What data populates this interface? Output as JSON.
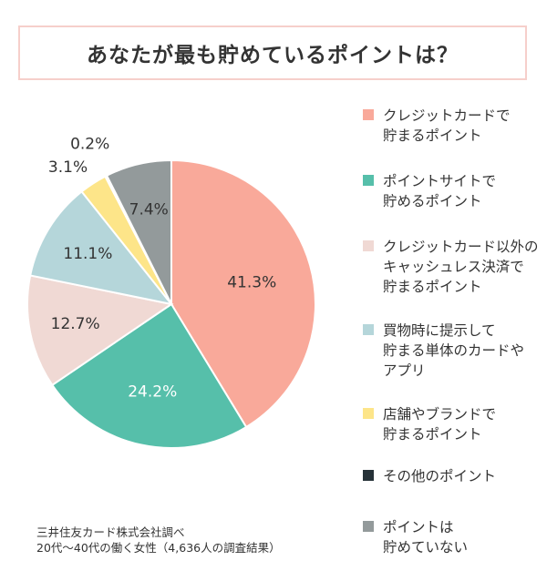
{
  "title": "あなたが最も貯めているポイントは？",
  "chart_data": {
    "type": "pie",
    "title": "あなたが最も貯めているポイントは？",
    "slices": [
      {
        "label": "クレジットカードで\n貯まるポイント",
        "value": 41.3,
        "display": "41.3%",
        "color": "#f9a99a"
      },
      {
        "label": "ポイントサイトで\n貯めるポイント",
        "value": 24.2,
        "display": "24.2%",
        "color": "#56bfaa"
      },
      {
        "label": "クレジットカード以外の\nキャッシュレス決済で\n貯まるポイント",
        "value": 12.7,
        "display": "12.7%",
        "color": "#f0d9d4"
      },
      {
        "label": "買物時に提示して\n貯まる単体のカードや\nアプリ",
        "value": 11.1,
        "display": "11.1%",
        "color": "#b5d6da"
      },
      {
        "label": "店舗やブランドで\n貯まるポイント",
        "value": 3.1,
        "display": "3.1%",
        "color": "#fde589"
      },
      {
        "label": "その他のポイント",
        "value": 0.2,
        "display": "0.2%",
        "color": "#263238"
      },
      {
        "label": "ポイントは\n貯めていない",
        "value": 7.4,
        "display": "7.4%",
        "color": "#939a9b"
      }
    ]
  },
  "source": {
    "line1": "三井住友カード株式会社調べ",
    "line2": "20代〜40代の働く女性（4,636人の調査結果）"
  }
}
